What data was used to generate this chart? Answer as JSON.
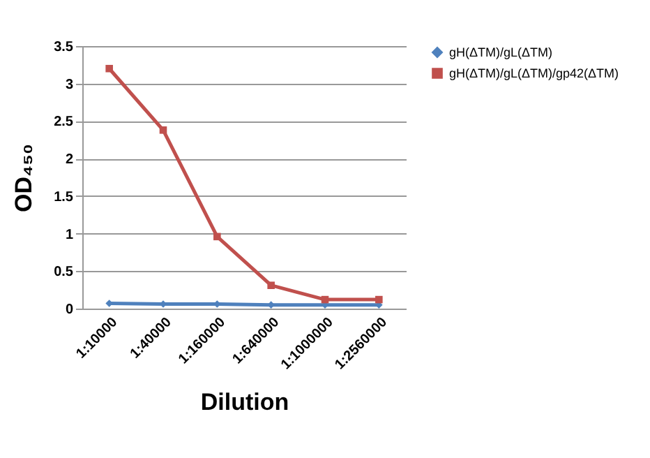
{
  "chart_data": {
    "type": "line",
    "xlabel": "Dilution",
    "ylabel": "OD₄₅₀",
    "categories": [
      "1:10000",
      "1:40000",
      "1:160000",
      "1:640000",
      "1:1000000",
      "1:2560000"
    ],
    "series": [
      {
        "name": "gH(ΔTM)/gL(ΔTM)",
        "color": "#4f81bd",
        "marker": "diamond",
        "values": [
          0.07,
          0.06,
          0.06,
          0.05,
          0.05,
          0.05
        ]
      },
      {
        "name": "gH(ΔTM)/gL(ΔTM)/gp42(ΔTM)",
        "color": "#c0504d",
        "marker": "square",
        "values": [
          3.2,
          2.38,
          0.96,
          0.31,
          0.12,
          0.12
        ]
      }
    ],
    "ylim": [
      0,
      3.5
    ],
    "yticks": [
      0,
      0.5,
      1,
      1.5,
      2,
      2.5,
      3,
      3.5
    ],
    "grid": "y",
    "legend": "right",
    "line_style": "solid"
  }
}
